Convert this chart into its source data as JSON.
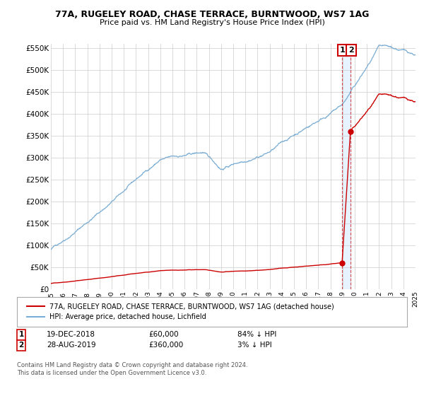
{
  "title": "77A, RUGELEY ROAD, CHASE TERRACE, BURNTWOOD, WS7 1AG",
  "subtitle": "Price paid vs. HM Land Registry's House Price Index (HPI)",
  "ylim": [
    0,
    560000
  ],
  "yticks": [
    0,
    50000,
    100000,
    150000,
    200000,
    250000,
    300000,
    350000,
    400000,
    450000,
    500000,
    550000
  ],
  "ytick_labels": [
    "£0",
    "£50K",
    "£100K",
    "£150K",
    "£200K",
    "£250K",
    "£300K",
    "£350K",
    "£400K",
    "£450K",
    "£500K",
    "£550K"
  ],
  "hpi_color": "#7aadd4",
  "price_color": "#cc0000",
  "legend_label_1": "77A, RUGELEY ROAD, CHASE TERRACE, BURNTWOOD, WS7 1AG (detached house)",
  "legend_label_2": "HPI: Average price, detached house, Lichfield",
  "annotation_1_date": "19-DEC-2018",
  "annotation_1_price": "£60,000",
  "annotation_1_hpi": "84% ↓ HPI",
  "annotation_2_date": "28-AUG-2019",
  "annotation_2_price": "£360,000",
  "annotation_2_hpi": "3% ↓ HPI",
  "footer": "Contains HM Land Registry data © Crown copyright and database right 2024.\nThis data is licensed under the Open Government Licence v3.0.",
  "background_color": "#ffffff",
  "grid_color": "#cccccc",
  "shade_color": "#ddeeff",
  "transaction_1_year": 2018.958,
  "transaction_2_year": 2019.646,
  "transaction_1_price": 60000,
  "transaction_2_price": 360000
}
